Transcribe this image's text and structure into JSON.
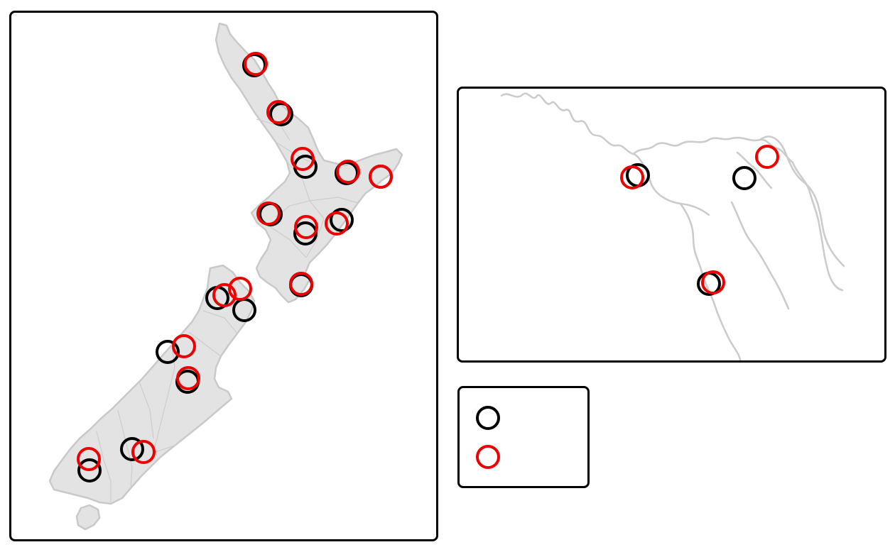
{
  "map": {
    "title": "",
    "marker_colors": {
      "series_a": "#000000",
      "series_b": "#ee0000"
    },
    "land_color": "#e3e3e3",
    "border_color": "#c9c9c9"
  },
  "legend": {
    "items": [
      {
        "color": "#000000",
        "label": ""
      },
      {
        "color": "#ee0000",
        "label": ""
      }
    ]
  }
}
